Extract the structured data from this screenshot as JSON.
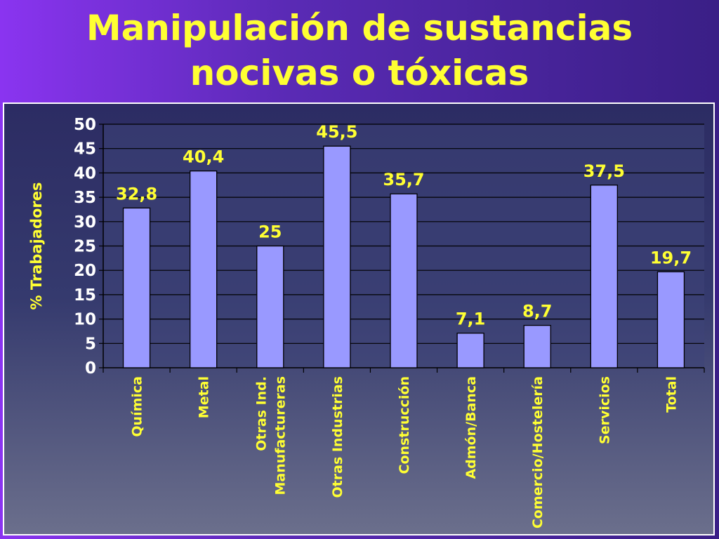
{
  "slide": {
    "title_line1": "Manipulación de sustancias",
    "title_line2": "nocivas o tóxicas"
  },
  "colors": {
    "title": "#ffff33",
    "bar_fill": "#9999ff",
    "labels": "#ffff33",
    "ticks": "#ffffff"
  },
  "chart_data": {
    "type": "bar",
    "title": "",
    "xlabel": "",
    "ylabel": "% Trabajadores",
    "ylim": [
      0,
      50
    ],
    "yticks": [
      0,
      5,
      10,
      15,
      20,
      25,
      30,
      35,
      40,
      45,
      50
    ],
    "grid": true,
    "categories": [
      [
        "Química"
      ],
      [
        "Metal"
      ],
      [
        "Otras Ind.",
        "Manufactureras"
      ],
      [
        "Otras Industrias"
      ],
      [
        "Construcción"
      ],
      [
        "Admón/Banca"
      ],
      [
        "Comercio/Hostelería"
      ],
      [
        "Servicios"
      ],
      [
        "Total"
      ]
    ],
    "values": [
      32.8,
      40.4,
      25,
      45.5,
      35.7,
      7.1,
      8.7,
      37.5,
      19.7
    ],
    "data_labels": [
      "32,8",
      "40,4",
      "25",
      "45,5",
      "35,7",
      "7,1",
      "8,7",
      "37,5",
      "19,7"
    ]
  }
}
